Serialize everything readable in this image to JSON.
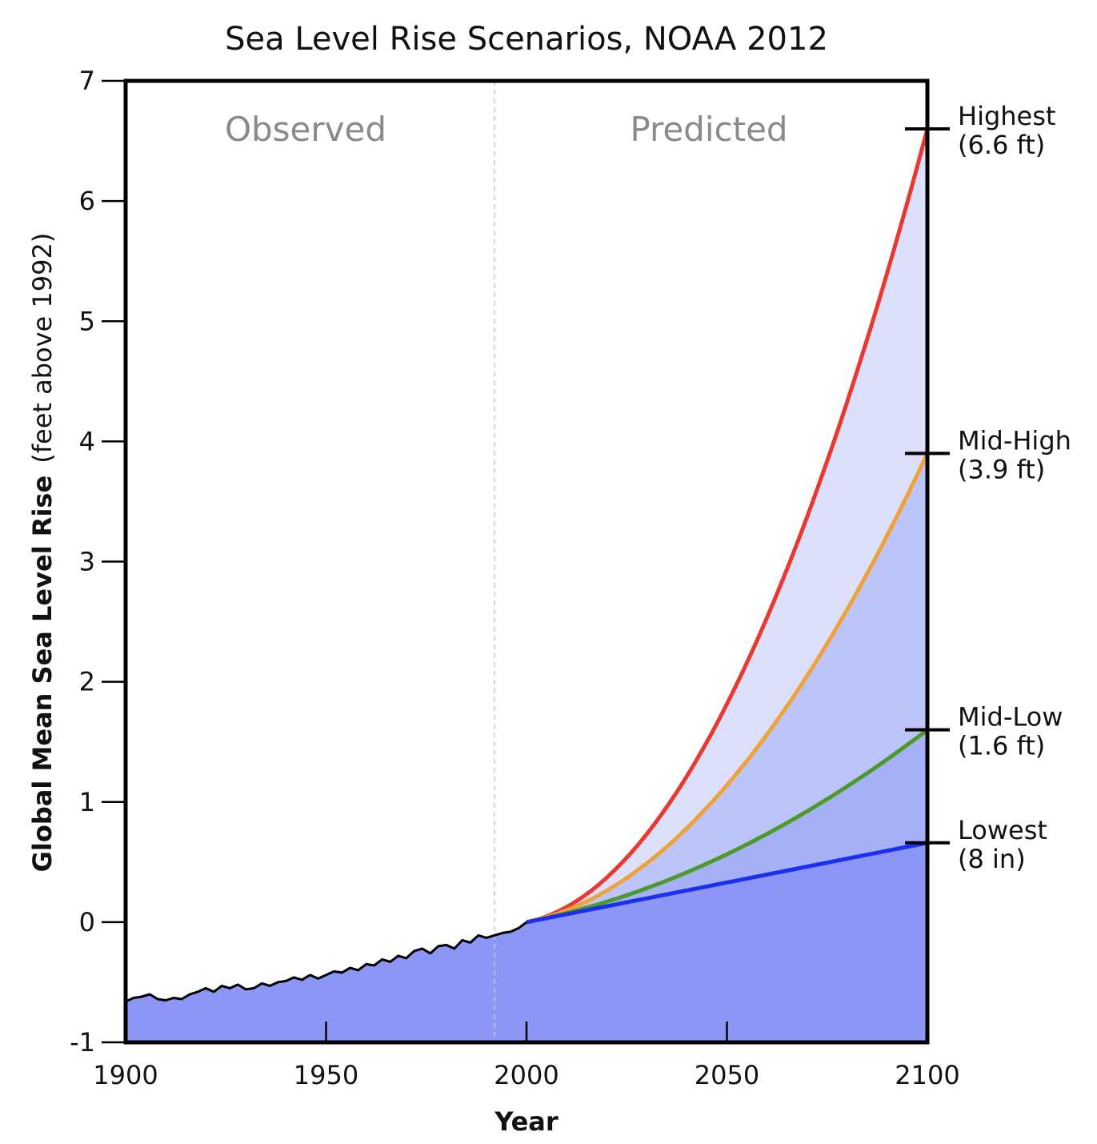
{
  "chart_data": {
    "type": "area",
    "title": "Sea Level Rise Scenarios, NOAA 2012",
    "xlabel": "Year",
    "ylabel_bold": "Global Mean Sea Level Rise",
    "ylabel_unit": "(feet above 1992)",
    "xlim": [
      1900,
      2100
    ],
    "ylim": [
      -1,
      7
    ],
    "x_ticks": [
      "1900",
      "1950",
      "2000",
      "2050",
      "2100"
    ],
    "y_ticks": [
      "-1",
      "0",
      "1",
      "2",
      "3",
      "4",
      "5",
      "6",
      "7"
    ],
    "regions": {
      "observed": "Observed",
      "predicted": "Predicted"
    },
    "divider_year": 1992,
    "observed": {
      "x": [
        1900,
        1902,
        1904,
        1906,
        1908,
        1910,
        1912,
        1914,
        1916,
        1918,
        1920,
        1922,
        1924,
        1926,
        1928,
        1930,
        1932,
        1934,
        1936,
        1938,
        1940,
        1942,
        1944,
        1946,
        1948,
        1950,
        1952,
        1954,
        1956,
        1958,
        1960,
        1962,
        1964,
        1966,
        1968,
        1970,
        1972,
        1974,
        1976,
        1978,
        1980,
        1982,
        1984,
        1986,
        1988,
        1990,
        1992,
        1994,
        1996,
        1998,
        2000
      ],
      "y": [
        -0.66,
        -0.63,
        -0.62,
        -0.6,
        -0.64,
        -0.65,
        -0.63,
        -0.64,
        -0.6,
        -0.58,
        -0.55,
        -0.58,
        -0.53,
        -0.55,
        -0.52,
        -0.56,
        -0.55,
        -0.51,
        -0.53,
        -0.5,
        -0.49,
        -0.46,
        -0.48,
        -0.44,
        -0.47,
        -0.44,
        -0.41,
        -0.42,
        -0.38,
        -0.4,
        -0.35,
        -0.36,
        -0.31,
        -0.33,
        -0.28,
        -0.3,
        -0.24,
        -0.22,
        -0.26,
        -0.2,
        -0.19,
        -0.22,
        -0.15,
        -0.17,
        -0.11,
        -0.13,
        -0.11,
        -0.09,
        -0.08,
        -0.05,
        0.0
      ]
    },
    "series": [
      {
        "name": "Highest",
        "label": "(6.6 ft)",
        "end_value": 6.6,
        "color": "#e8382f",
        "fill": "#dde0fb"
      },
      {
        "name": "Mid-High",
        "label": "(3.9 ft)",
        "end_value": 3.9,
        "color": "#f0a23a",
        "fill": "#bcc4f9"
      },
      {
        "name": "Mid-Low",
        "label": "(1.6 ft)",
        "end_value": 1.6,
        "color": "#4c9a2a",
        "fill": "#a6b0f7"
      },
      {
        "name": "Lowest",
        "label": "(8 in)",
        "end_value": 0.66,
        "color": "#1a2ff0",
        "fill": "#8b96f7"
      }
    ],
    "start_year": 2000,
    "end_year": 2100,
    "observed_fill": "#8b96f7",
    "grid": false,
    "legend": "right"
  }
}
